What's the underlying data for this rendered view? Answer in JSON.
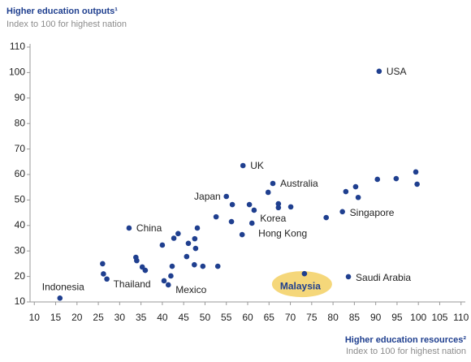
{
  "chart_data": {
    "type": "scatter",
    "title": "Higher education outputs¹",
    "subtitle": "Index to 100 for highest nation",
    "x_label": "Higher education resources²",
    "x_sublabel": "Index to 100 for highest nation",
    "color": "#1f3f8f",
    "x": [
      16,
      26,
      26.2,
      27,
      32.2,
      33.8,
      34,
      35.3,
      36,
      40,
      40.4,
      41.4,
      42,
      42.3,
      42.7,
      43.7,
      45.7,
      46.1,
      47.6,
      47.8,
      48.2,
      47.5,
      49.5,
      53,
      52.6,
      55,
      56.4,
      56.2,
      58.7,
      58.9,
      60.4,
      61.5,
      61,
      64.8,
      65.9,
      67.2,
      67.2,
      70.1,
      73.3,
      78.4,
      82.2,
      83,
      85.3,
      85.9,
      83.6,
      90.4,
      94.8,
      99.4,
      99.7,
      90.8
    ],
    "values": [
      11.5,
      25,
      21,
      19,
      39,
      27.5,
      26.2,
      23.7,
      22.4,
      32.3,
      18.3,
      16.7,
      20.2,
      24,
      35,
      36.8,
      27.8,
      33,
      34.8,
      31,
      39,
      24.6,
      24,
      24,
      43.4,
      51.4,
      48.2,
      41.5,
      36.4,
      63.5,
      48.2,
      46,
      40.9,
      53,
      56.5,
      48.5,
      47,
      47.3,
      21.1,
      43.1,
      45.4,
      53.3,
      55.2,
      51,
      19.9,
      58.1,
      58.4,
      61,
      56.2,
      100.5
    ],
    "point_labels": [
      "Indonesia",
      null,
      null,
      "Thailand",
      "China",
      null,
      null,
      null,
      null,
      null,
      null,
      "Mexico",
      null,
      null,
      null,
      null,
      null,
      null,
      null,
      null,
      null,
      null,
      null,
      null,
      null,
      "Japan",
      null,
      null,
      "Hong Kong",
      "UK",
      null,
      null,
      "Korea",
      null,
      "Australia",
      null,
      null,
      null,
      "Malaysia",
      null,
      "Singapore",
      null,
      null,
      null,
      "Saudi Arabia",
      null,
      null,
      null,
      null,
      "USA"
    ],
    "xlim": [
      9,
      111
    ],
    "ylim": [
      10,
      110
    ],
    "xticks": [
      10,
      15,
      20,
      25,
      30,
      35,
      40,
      45,
      50,
      55,
      60,
      65,
      70,
      75,
      80,
      85,
      90,
      95,
      100,
      105,
      110
    ],
    "yticks": [
      10,
      20,
      30,
      40,
      50,
      60,
      70,
      80,
      90,
      100,
      110
    ]
  }
}
